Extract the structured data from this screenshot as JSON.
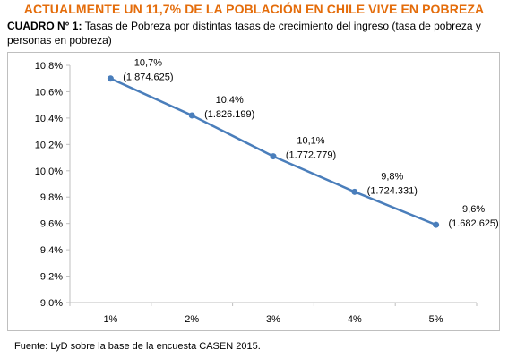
{
  "headline": "ACTUALMENTE UN 11,7% DE LA POBLACIÓN EN CHILE VIVE EN POBREZA",
  "subtitle_lead": "CUADRO N° 1:",
  "subtitle_rest": " Tasas de Pobreza por distintas tasas de crecimiento del ingreso (tasa de pobreza y personas en pobreza)",
  "source": "Fuente: LyD sobre la base de la encuesta CASEN 2015.",
  "colors": {
    "headline": "#e46c0a",
    "series": "#4a7ebb",
    "gridline": "#d9d9d9"
  },
  "chart_data": {
    "type": "line",
    "categories": [
      "1%",
      "2%",
      "3%",
      "4%",
      "5%"
    ],
    "series": [
      {
        "values": [
          10.7,
          10.42,
          10.11,
          9.84,
          9.59
        ]
      }
    ],
    "data_labels": [
      {
        "rate": "10,7%",
        "persons": "(1.874.625)"
      },
      {
        "rate": "10,4%",
        "persons": "(1.826.199)"
      },
      {
        "rate": "10,1%",
        "persons": "(1.772.779)"
      },
      {
        "rate": "9,8%",
        "persons": "(1.724.331)"
      },
      {
        "rate": "9,6%",
        "persons": "(1.682.625)"
      }
    ],
    "ylim": [
      9.0,
      10.8
    ],
    "yticks": [
      9.0,
      9.2,
      9.4,
      9.6,
      9.8,
      10.0,
      10.2,
      10.4,
      10.6,
      10.8
    ],
    "ytick_labels": [
      "9,0%",
      "9,2%",
      "9,4%",
      "9,6%",
      "9,8%",
      "10,0%",
      "10,2%",
      "10,4%",
      "10,6%",
      "10,8%"
    ],
    "grid": false,
    "legend": "none"
  }
}
